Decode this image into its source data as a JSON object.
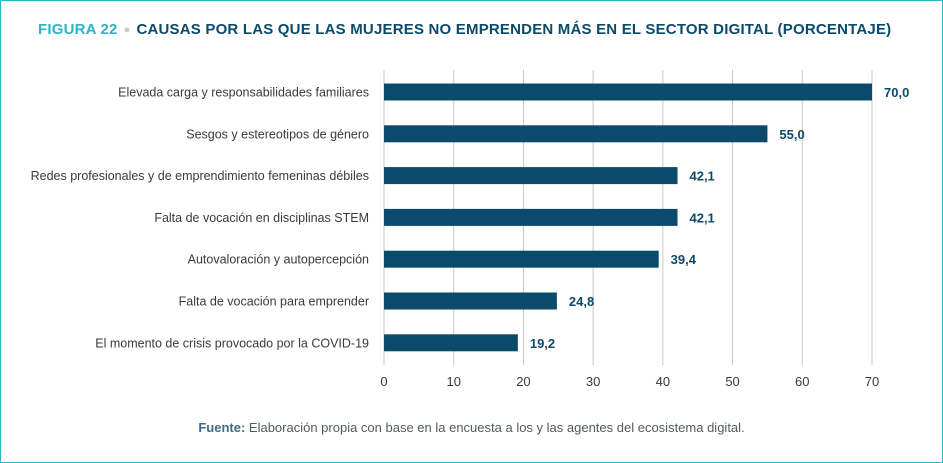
{
  "header": {
    "figure_number": "FIGURA 22",
    "title": "CAUSAS POR LAS QUE LAS MUJERES NO EMPRENDEN MÁS EN EL SECTOR DIGITAL (PORCENTAJE)"
  },
  "footer": {
    "source_label": "Fuente:",
    "source_text": "Elaboración propia con base en la encuesta a los y las agentes del ecosistema digital."
  },
  "colors": {
    "bar": "#0b4a6b",
    "label_value": "#0b4a6b",
    "accent": "#2bb5c6",
    "grid": "#c8c8c8",
    "text": "#3a3a3a"
  },
  "chart_data": {
    "type": "bar",
    "orientation": "horizontal",
    "categories": [
      "Elevada carga y responsabilidades familiares",
      "Sesgos y estereotipos de género",
      "Redes profesionales y de emprendimiento femeninas débiles",
      "Falta de vocación en disciplinas STEM",
      "Autovaloración y autopercepción",
      "Falta de vocación para emprender",
      "El momento de crisis provocado por la COVID-19"
    ],
    "values": [
      70.0,
      55.0,
      42.1,
      42.1,
      39.4,
      24.8,
      19.2
    ],
    "value_labels": [
      "70,0",
      "55,0",
      "42,1",
      "42,1",
      "39,4",
      "24,8",
      "19,2"
    ],
    "x_ticks": [
      0,
      10,
      20,
      30,
      40,
      50,
      60,
      70
    ],
    "x_tick_labels": [
      "0",
      "10",
      "20",
      "30",
      "40",
      "50",
      "60",
      "70"
    ],
    "xlim": [
      0,
      70
    ],
    "xlabel": "",
    "ylabel": "",
    "grid": true
  }
}
